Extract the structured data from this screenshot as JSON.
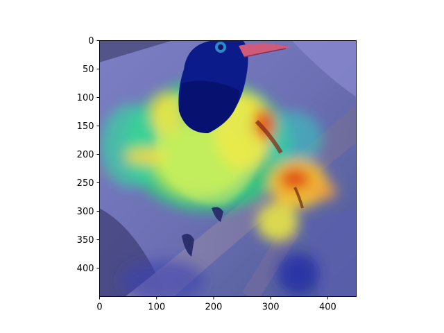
{
  "figure": {
    "x_ticks": [
      "0",
      "100",
      "200",
      "300",
      "400"
    ],
    "y_ticks": [
      "0",
      "50",
      "100",
      "150",
      "200",
      "250",
      "300",
      "350",
      "400"
    ],
    "image_extent": {
      "x": [
        0,
        450
      ],
      "y": [
        450,
        0
      ]
    },
    "colormap": "jet",
    "overlay_alpha": 0.5,
    "scene": "bird perched on a branch with attention heatmap overlay"
  }
}
